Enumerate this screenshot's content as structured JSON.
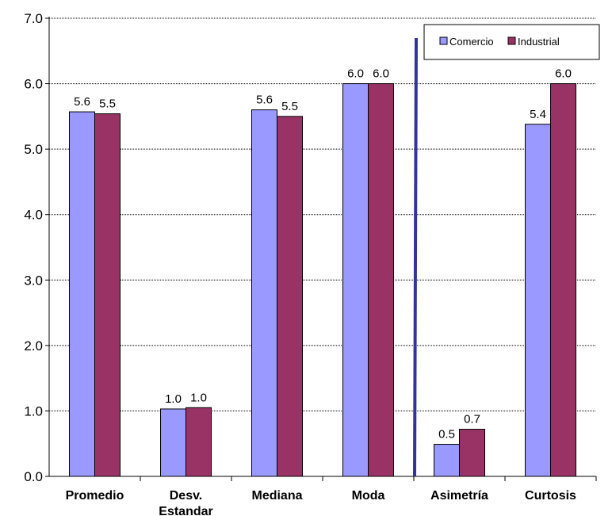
{
  "chart_data": {
    "type": "bar",
    "categories": [
      [
        "Promedio"
      ],
      [
        "Desv.",
        "Estandar"
      ],
      [
        "Mediana"
      ],
      [
        "Moda"
      ],
      [
        "Asimetría"
      ],
      [
        "Curtosis"
      ]
    ],
    "series": [
      {
        "name": "Comercio",
        "color": "#9999FF",
        "values": [
          5.57,
          1.03,
          5.6,
          6.0,
          0.49,
          5.38
        ],
        "labels": [
          "5.6",
          "1.0",
          "5.6",
          "6.0",
          "0.5",
          "5.4"
        ]
      },
      {
        "name": "Industrial",
        "color": "#993366",
        "values": [
          5.54,
          1.05,
          5.5,
          6.0,
          0.72,
          6.0
        ],
        "labels": [
          "5.5",
          "1.0",
          "5.5",
          "6.0",
          "0.7",
          "6.0"
        ]
      }
    ],
    "yticks": [
      "0.0",
      "1.0",
      "2.0",
      "3.0",
      "4.0",
      "5.0",
      "6.0",
      "7.0"
    ],
    "ylim": [
      0,
      7
    ],
    "grid": true,
    "legend_position": "top-right",
    "separator_after_category": 4,
    "separator_color": "#333399"
  }
}
